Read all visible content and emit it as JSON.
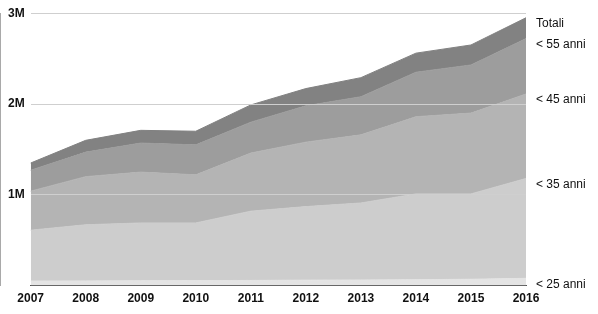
{
  "chart_data": {
    "type": "area",
    "stacked": true,
    "grid": true,
    "categories": [
      "2007",
      "2008",
      "2009",
      "2010",
      "2011",
      "2012",
      "2013",
      "2014",
      "2015",
      "2016"
    ],
    "series": [
      {
        "name": "< 25 anni",
        "color": "#e4e4e4",
        "values": [
          50000,
          52000,
          54000,
          55000,
          57000,
          60000,
          62000,
          65000,
          70000,
          80000
        ]
      },
      {
        "name": "< 35 anni",
        "color": "#cdcdcd",
        "values": [
          560000,
          618000,
          636000,
          635000,
          763000,
          810000,
          848000,
          945000,
          940000,
          1100000
        ]
      },
      {
        "name": "< 45 anni",
        "color": "#b4b4b4",
        "values": [
          430000,
          530000,
          560000,
          530000,
          640000,
          710000,
          750000,
          850000,
          890000,
          930000
        ]
      },
      {
        "name": "< 55 anni",
        "color": "#9d9d9d",
        "values": [
          230000,
          270000,
          320000,
          330000,
          340000,
          400000,
          420000,
          490000,
          530000,
          610000
        ]
      },
      {
        "name": "Totali",
        "color": "#828282",
        "values": [
          80000,
          130000,
          140000,
          150000,
          190000,
          190000,
          210000,
          210000,
          220000,
          230000
        ]
      }
    ],
    "ylim": [
      0,
      3000000
    ],
    "yticks": [
      {
        "value": 1000000,
        "label": "1M"
      },
      {
        "value": 2000000,
        "label": "2M"
      },
      {
        "value": 3000000,
        "label": "3M"
      }
    ]
  }
}
